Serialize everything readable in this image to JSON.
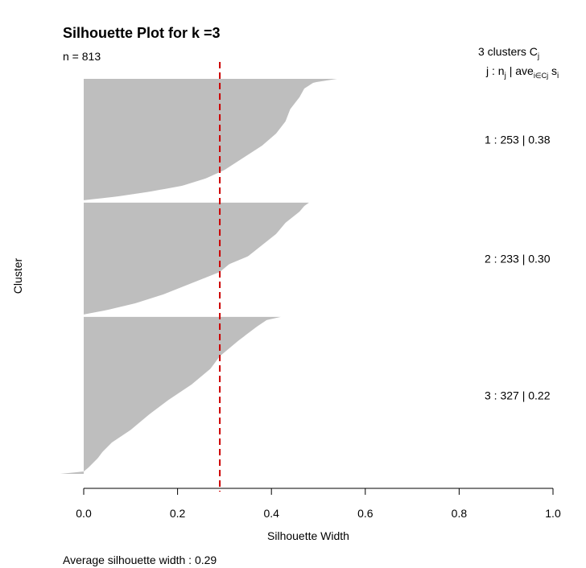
{
  "chart_data": {
    "type": "silhouette",
    "title": "Silhouette Plot for k =3",
    "subtitle": "n = 813",
    "xlabel": "Silhouette Width",
    "ylabel": "Cluster",
    "xlim": [
      0,
      1
    ],
    "xticks": [
      0,
      0.2,
      0.4,
      0.6,
      0.8,
      1
    ],
    "xtick_labels": [
      "0.0",
      "0.2",
      "0.4",
      "0.6",
      "0.8",
      "1.0"
    ],
    "grid": false,
    "bar_color": "#bebebe",
    "reference_line": {
      "x": 0.29,
      "color": "#cc0000",
      "style": "dashed"
    },
    "legend_header": {
      "main": "3 clusters",
      "symbol": "C",
      "symbol_sub": "j",
      "line2": "j :  n",
      "line2_sub1": "j",
      "line2_mid": " | ave",
      "line2_sub2": "i∈Cj",
      "line2_end": " s",
      "line2_sub3": "i"
    },
    "clusters": [
      {
        "label": "1 :   253  |  0.38",
        "id": 1,
        "n": 253,
        "avg": 0.38,
        "profile": [
          [
            0,
            0.54
          ],
          [
            0.03,
            0.49
          ],
          [
            0.08,
            0.47
          ],
          [
            0.15,
            0.46
          ],
          [
            0.25,
            0.44
          ],
          [
            0.35,
            0.43
          ],
          [
            0.45,
            0.41
          ],
          [
            0.55,
            0.38
          ],
          [
            0.65,
            0.34
          ],
          [
            0.75,
            0.3
          ],
          [
            0.82,
            0.26
          ],
          [
            0.88,
            0.21
          ],
          [
            0.93,
            0.14
          ],
          [
            0.97,
            0.07
          ],
          [
            1,
            0.0
          ]
        ]
      },
      {
        "label": "2 :   233  |  0.30",
        "id": 2,
        "n": 233,
        "avg": 0.3,
        "profile": [
          [
            0,
            0.48
          ],
          [
            0.03,
            0.47
          ],
          [
            0.08,
            0.46
          ],
          [
            0.18,
            0.43
          ],
          [
            0.28,
            0.41
          ],
          [
            0.38,
            0.38
          ],
          [
            0.48,
            0.35
          ],
          [
            0.55,
            0.31
          ],
          [
            0.62,
            0.29
          ],
          [
            0.72,
            0.23
          ],
          [
            0.82,
            0.17
          ],
          [
            0.9,
            0.11
          ],
          [
            0.96,
            0.05
          ],
          [
            1,
            0.0
          ]
        ]
      },
      {
        "label": "3 :   327  |  0.22",
        "id": 3,
        "n": 327,
        "avg": 0.22,
        "profile": [
          [
            0,
            0.42
          ],
          [
            0.02,
            0.39
          ],
          [
            0.06,
            0.37
          ],
          [
            0.15,
            0.33
          ],
          [
            0.25,
            0.29
          ],
          [
            0.33,
            0.27
          ],
          [
            0.43,
            0.23
          ],
          [
            0.53,
            0.18
          ],
          [
            0.62,
            0.14
          ],
          [
            0.72,
            0.1
          ],
          [
            0.8,
            0.06
          ],
          [
            0.86,
            0.04
          ],
          [
            0.9,
            0.03
          ],
          [
            0.93,
            0.02
          ],
          [
            0.96,
            0.01
          ],
          [
            0.985,
            0.0
          ],
          [
            1,
            -0.05
          ]
        ]
      }
    ],
    "footer": "Average silhouette width :  0.29"
  }
}
